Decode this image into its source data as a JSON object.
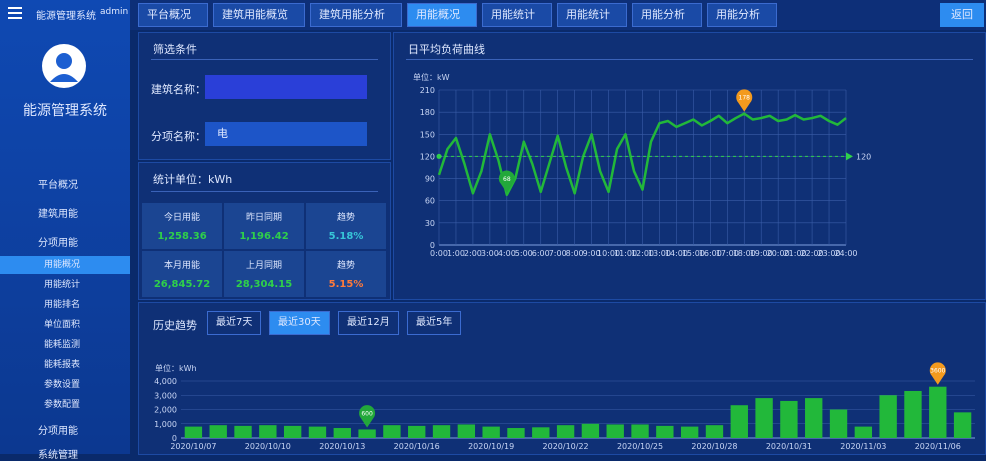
{
  "header": {
    "title": "能源管理系统",
    "user": "admin",
    "tabs": [
      "平台概况",
      "建筑用能概览",
      "建筑用能分析",
      "用能概况",
      "用能统计",
      "用能统计",
      "用能分析",
      "用能分析"
    ],
    "active_tab": 3,
    "button": "返回"
  },
  "sidebar": {
    "title": "能源管理系统",
    "menu": [
      "平台概况",
      "建筑用能",
      "分项用能"
    ],
    "submenu": [
      "用能概况",
      "用能统计",
      "用能排名",
      "单位面积",
      "能耗监测",
      "能耗报表",
      "参数设置",
      "参数配置"
    ],
    "active_sub": 0,
    "more": [
      "分项用能",
      "系统管理"
    ]
  },
  "filter": {
    "title": "筛选条件",
    "building_label": "建筑名称：",
    "item_label": "分项名称：",
    "item_value": "电"
  },
  "stats": {
    "title": "统计单位：kWh",
    "cells": [
      {
        "label": "今日用能",
        "value": "1,258.36"
      },
      {
        "label": "昨日同期",
        "value": "1,196.42"
      },
      {
        "label": "趋势",
        "value": "5.18%",
        "dir": "up"
      },
      {
        "label": "本月用能",
        "value": "26,845.72"
      },
      {
        "label": "上月同期",
        "value": "28,304.15"
      },
      {
        "label": "趋势",
        "value": "5.15%",
        "dir": "down"
      }
    ]
  },
  "line_panel": {
    "title": "日平均负荷曲线"
  },
  "bar_panel": {
    "title": "历史趋势",
    "buttons": [
      "最近7天",
      "最近30天",
      "最近12月",
      "最近5年"
    ],
    "active_button": 1
  },
  "chart_data": [
    {
      "type": "line",
      "unit": "单位：kW",
      "color": "#22b83a",
      "categories": [
        "0:00",
        null,
        "1:00",
        null,
        "2:00",
        null,
        "3:00",
        null,
        "4:00",
        null,
        "5:00",
        null,
        "6:00",
        null,
        "7:00",
        null,
        "8:00",
        null,
        "9:00",
        null,
        "10:00",
        null,
        "11:00",
        null,
        "12:00",
        null,
        "13:00",
        null,
        "14:00",
        null,
        "15:00",
        null,
        "16:00",
        null,
        "17:00",
        null,
        "18:00",
        null,
        "19:00",
        null,
        "20:00",
        null,
        "21:00",
        null,
        "22:00",
        null,
        "23:00",
        null,
        "24:00"
      ],
      "values": [
        95,
        130,
        145,
        110,
        70,
        100,
        150,
        115,
        68,
        90,
        140,
        110,
        72,
        110,
        148,
        105,
        70,
        120,
        150,
        100,
        72,
        130,
        150,
        100,
        75,
        140,
        165,
        168,
        160,
        165,
        170,
        162,
        168,
        175,
        165,
        172,
        178,
        170,
        172,
        175,
        168,
        170,
        176,
        170,
        172,
        175,
        168,
        163,
        172
      ],
      "min": 68,
      "max": 178,
      "reference": 120,
      "ylim": [
        0,
        210
      ],
      "yticks": [
        0,
        30,
        60,
        90,
        120,
        150,
        180,
        210
      ],
      "grid": true
    },
    {
      "type": "bar",
      "unit": "单位：kWh",
      "color": "#22b83a",
      "categories": [
        "2020/10/07",
        null,
        null,
        "2020/10/10",
        null,
        null,
        "2020/10/13",
        null,
        null,
        "2020/10/16",
        null,
        null,
        "2020/10/19",
        null,
        null,
        "2020/10/22",
        null,
        null,
        "2020/10/25",
        null,
        null,
        "2020/10/28",
        null,
        null,
        "2020/10/31",
        null,
        null,
        "2020/11/03",
        null,
        null,
        "2020/11/06",
        null
      ],
      "values": [
        800,
        900,
        850,
        900,
        850,
        800,
        700,
        600,
        900,
        850,
        900,
        950,
        800,
        700,
        750,
        900,
        1000,
        950,
        950,
        850,
        800,
        900,
        2300,
        2800,
        2600,
        2800,
        2000,
        800,
        3000,
        3300,
        3600,
        1800
      ],
      "min": 600,
      "max": 3600,
      "ylim": [
        0,
        4000
      ],
      "yticks": [
        0,
        {
          "value": 1000,
          "label": "1,000"
        },
        {
          "value": 2000,
          "label": "2,000"
        },
        {
          "value": 3000,
          "label": "3,000"
        },
        {
          "value": 4000,
          "label": "4,000"
        }
      ],
      "grid": true
    }
  ]
}
